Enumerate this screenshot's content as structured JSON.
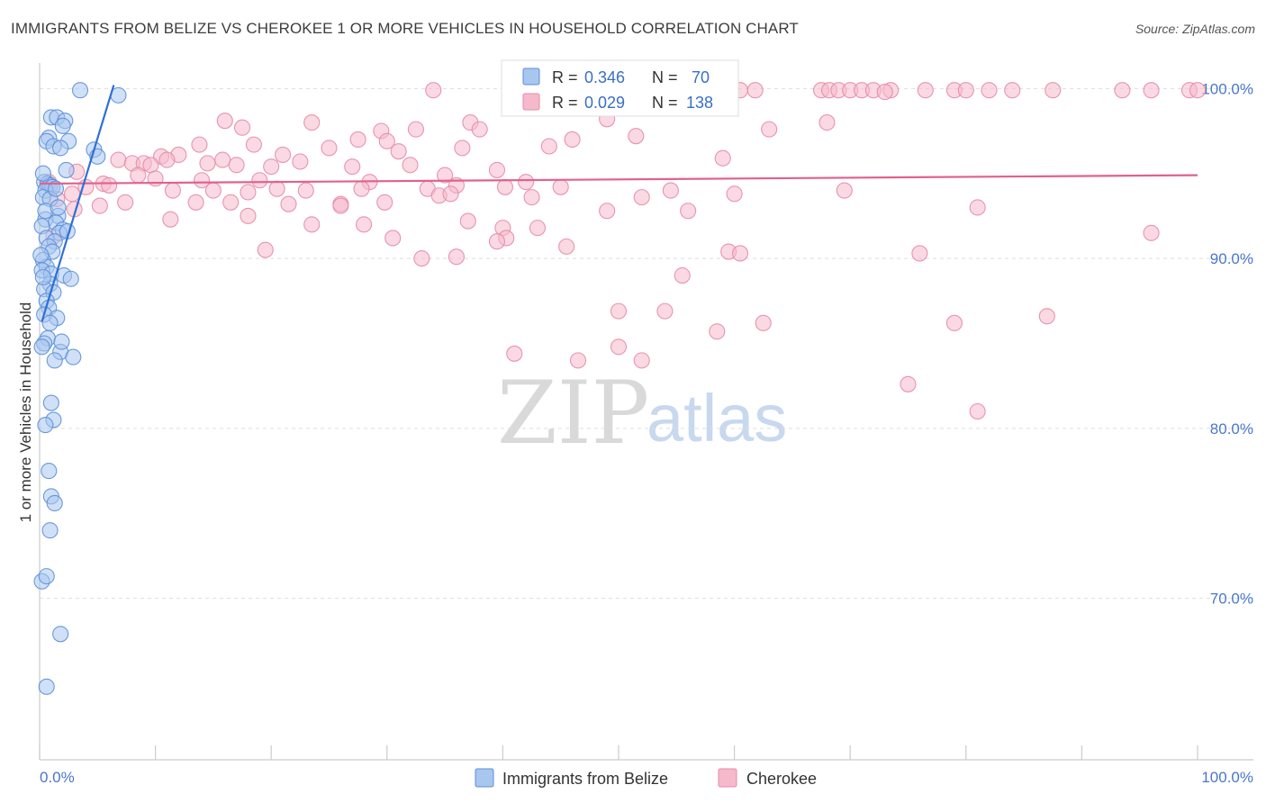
{
  "header": {
    "title": "IMMIGRANTS FROM BELIZE VS CHEROKEE 1 OR MORE VEHICLES IN HOUSEHOLD CORRELATION CHART",
    "source": "Source: ZipAtlas.com"
  },
  "watermark": {
    "zip": "ZIP",
    "atlas": "atlas"
  },
  "colors": {
    "blue_fill": "#a9c6ee",
    "blue_stroke": "#5b8fd9",
    "blue_line": "#2f6fd6",
    "pink_fill": "#f6b9cc",
    "pink_stroke": "#e58aa9",
    "pink_line": "#e0628e",
    "tick_text": "#4a77c9",
    "grid": "#dddddd"
  },
  "legend_box": {
    "rows": [
      {
        "r_label": "R =",
        "r_value": "0.346",
        "n_label": "N =",
        "n_value": "70"
      },
      {
        "r_label": "R =",
        "r_value": "0.029",
        "n_label": "N =",
        "n_value": "138"
      }
    ]
  },
  "chart_data": {
    "type": "scatter",
    "title": "IMMIGRANTS FROM BELIZE VS CHEROKEE 1 OR MORE VEHICLES IN HOUSEHOLD CORRELATION CHART",
    "xlabel": "",
    "ylabel": "1 or more Vehicles in Household",
    "xlim": [
      0,
      100
    ],
    "ylim": [
      60.5,
      101.5
    ],
    "x_tick_labels": [
      {
        "value": 0,
        "label": "0.0%"
      },
      {
        "value": 100,
        "label": "100.0%"
      }
    ],
    "y_tick_labels": [
      {
        "value": 100,
        "label": "100.0%"
      },
      {
        "value": 90,
        "label": "90.0%"
      },
      {
        "value": 80,
        "label": "80.0%"
      },
      {
        "value": 70,
        "label": "70.0%"
      }
    ],
    "y_gridlines": [
      100,
      90,
      80,
      70
    ],
    "legend": [
      "Immigrants from Belize",
      "Cherokee"
    ],
    "series": [
      {
        "name": "Immigrants from Belize",
        "r": 0.346,
        "n": 70,
        "trend": {
          "x": [
            0.2,
            6.4
          ],
          "y": [
            86.3,
            100.2
          ]
        },
        "points": [
          [
            3.5,
            99.9
          ],
          [
            6.8,
            99.6
          ],
          [
            1.0,
            98.3
          ],
          [
            1.5,
            98.3
          ],
          [
            2.2,
            98.1
          ],
          [
            2.0,
            97.8
          ],
          [
            0.8,
            97.1
          ],
          [
            0.6,
            96.9
          ],
          [
            2.5,
            96.9
          ],
          [
            1.2,
            96.6
          ],
          [
            1.8,
            96.5
          ],
          [
            4.7,
            96.4
          ],
          [
            5.0,
            96.0
          ],
          [
            2.3,
            95.2
          ],
          [
            0.4,
            94.5
          ],
          [
            0.7,
            94.4
          ],
          [
            0.9,
            94.3
          ],
          [
            1.1,
            94.2
          ],
          [
            0.5,
            94.0
          ],
          [
            0.3,
            93.6
          ],
          [
            0.9,
            93.5
          ],
          [
            1.6,
            92.5
          ],
          [
            0.5,
            92.3
          ],
          [
            1.4,
            92.1
          ],
          [
            0.2,
            91.9
          ],
          [
            2.0,
            91.7
          ],
          [
            1.7,
            91.5
          ],
          [
            0.6,
            91.2
          ],
          [
            1.3,
            91.0
          ],
          [
            0.8,
            90.7
          ],
          [
            1.1,
            90.4
          ],
          [
            0.3,
            89.9
          ],
          [
            0.6,
            89.5
          ],
          [
            0.2,
            89.3
          ],
          [
            1.0,
            89.1
          ],
          [
            2.1,
            89.0
          ],
          [
            2.7,
            88.8
          ],
          [
            0.9,
            88.5
          ],
          [
            0.4,
            88.2
          ],
          [
            1.2,
            88.0
          ],
          [
            0.6,
            87.5
          ],
          [
            0.8,
            87.1
          ],
          [
            0.4,
            86.7
          ],
          [
            1.5,
            86.5
          ],
          [
            0.9,
            86.2
          ],
          [
            1.8,
            84.5
          ],
          [
            2.9,
            84.2
          ],
          [
            1.3,
            84.0
          ],
          [
            0.7,
            85.3
          ],
          [
            0.4,
            85.0
          ],
          [
            1.0,
            81.5
          ],
          [
            1.2,
            80.5
          ],
          [
            0.5,
            80.2
          ],
          [
            0.8,
            77.5
          ],
          [
            1.0,
            76.0
          ],
          [
            1.3,
            75.6
          ],
          [
            0.9,
            74.0
          ],
          [
            0.2,
            71.0
          ],
          [
            0.6,
            71.3
          ],
          [
            1.8,
            67.9
          ],
          [
            0.6,
            64.8
          ],
          [
            0.3,
            95.0
          ],
          [
            0.5,
            92.8
          ],
          [
            1.6,
            93.0
          ],
          [
            0.1,
            90.2
          ],
          [
            0.3,
            88.9
          ],
          [
            2.4,
            91.6
          ],
          [
            1.9,
            85.1
          ],
          [
            0.2,
            84.8
          ],
          [
            1.4,
            94.1
          ]
        ]
      },
      {
        "name": "Cherokee",
        "r": 0.029,
        "n": 138,
        "trend": {
          "x": [
            0,
            100
          ],
          "y": [
            94.4,
            94.9
          ]
        },
        "points": [
          [
            34.0,
            99.9
          ],
          [
            43.5,
            99.9
          ],
          [
            47.5,
            99.9
          ],
          [
            52.0,
            99.9
          ],
          [
            53.0,
            99.9
          ],
          [
            56.5,
            99.9
          ],
          [
            60.5,
            99.9
          ],
          [
            61.8,
            99.9
          ],
          [
            67.5,
            99.9
          ],
          [
            68.2,
            99.9
          ],
          [
            69.0,
            99.9
          ],
          [
            70.0,
            99.9
          ],
          [
            71.0,
            99.9
          ],
          [
            72.0,
            99.9
          ],
          [
            73.5,
            99.9
          ],
          [
            76.5,
            99.9
          ],
          [
            79.0,
            99.9
          ],
          [
            80.0,
            99.9
          ],
          [
            82.0,
            99.9
          ],
          [
            84.0,
            99.9
          ],
          [
            93.5,
            99.9
          ],
          [
            96.0,
            99.9
          ],
          [
            99.3,
            99.9
          ],
          [
            100.0,
            99.9
          ],
          [
            87.5,
            99.9
          ],
          [
            73.0,
            99.8
          ],
          [
            16.0,
            98.1
          ],
          [
            23.5,
            98.0
          ],
          [
            37.2,
            98.0
          ],
          [
            49.0,
            98.2
          ],
          [
            68.0,
            98.0
          ],
          [
            17.5,
            97.7
          ],
          [
            29.5,
            97.5
          ],
          [
            32.5,
            97.6
          ],
          [
            38.0,
            97.6
          ],
          [
            27.5,
            97.0
          ],
          [
            30.0,
            96.9
          ],
          [
            46.0,
            97.0
          ],
          [
            51.5,
            97.2
          ],
          [
            63.0,
            97.6
          ],
          [
            13.8,
            96.7
          ],
          [
            18.5,
            96.7
          ],
          [
            21.0,
            96.1
          ],
          [
            25.0,
            96.5
          ],
          [
            31.0,
            96.3
          ],
          [
            36.5,
            96.5
          ],
          [
            44.0,
            96.6
          ],
          [
            10.5,
            96.0
          ],
          [
            12.0,
            96.1
          ],
          [
            15.8,
            95.8
          ],
          [
            17.0,
            95.5
          ],
          [
            20.0,
            95.4
          ],
          [
            22.5,
            95.7
          ],
          [
            27.0,
            95.4
          ],
          [
            6.8,
            95.8
          ],
          [
            8.0,
            95.6
          ],
          [
            9.0,
            95.6
          ],
          [
            9.6,
            95.5
          ],
          [
            11.0,
            95.8
          ],
          [
            14.5,
            95.6
          ],
          [
            32.0,
            95.5
          ],
          [
            39.5,
            95.2
          ],
          [
            59.0,
            95.9
          ],
          [
            3.2,
            95.1
          ],
          [
            8.5,
            94.9
          ],
          [
            10.0,
            94.7
          ],
          [
            14.0,
            94.6
          ],
          [
            28.5,
            94.5
          ],
          [
            35.0,
            94.9
          ],
          [
            42.0,
            94.5
          ],
          [
            4.0,
            94.2
          ],
          [
            5.5,
            94.4
          ],
          [
            6.0,
            94.3
          ],
          [
            11.5,
            94.0
          ],
          [
            15.0,
            94.0
          ],
          [
            18.0,
            93.9
          ],
          [
            20.5,
            94.1
          ],
          [
            23.0,
            94.0
          ],
          [
            27.8,
            94.1
          ],
          [
            33.5,
            94.1
          ],
          [
            36.0,
            94.3
          ],
          [
            40.2,
            94.2
          ],
          [
            45.0,
            94.2
          ],
          [
            54.5,
            94.0
          ],
          [
            60.0,
            93.8
          ],
          [
            69.5,
            94.0
          ],
          [
            2.8,
            93.8
          ],
          [
            1.5,
            93.5
          ],
          [
            5.2,
            93.1
          ],
          [
            7.4,
            93.3
          ],
          [
            13.5,
            93.3
          ],
          [
            16.5,
            93.3
          ],
          [
            21.5,
            93.2
          ],
          [
            26.0,
            93.2
          ],
          [
            29.8,
            93.3
          ],
          [
            34.5,
            93.7
          ],
          [
            42.5,
            93.6
          ],
          [
            52.0,
            93.6
          ],
          [
            3.0,
            92.9
          ],
          [
            18.0,
            92.5
          ],
          [
            28.0,
            92.0
          ],
          [
            23.5,
            92.0
          ],
          [
            37.0,
            92.2
          ],
          [
            40.0,
            91.8
          ],
          [
            43.0,
            91.8
          ],
          [
            56.0,
            92.8
          ],
          [
            81.0,
            93.0
          ],
          [
            11.3,
            92.3
          ],
          [
            30.5,
            91.2
          ],
          [
            40.3,
            91.2
          ],
          [
            39.5,
            91.0
          ],
          [
            49.0,
            92.8
          ],
          [
            19.5,
            90.5
          ],
          [
            33.0,
            90.0
          ],
          [
            36.0,
            90.1
          ],
          [
            45.5,
            90.7
          ],
          [
            59.5,
            90.4
          ],
          [
            60.5,
            90.3
          ],
          [
            76.0,
            90.3
          ],
          [
            96.0,
            91.5
          ],
          [
            55.5,
            89.0
          ],
          [
            50.0,
            86.9
          ],
          [
            54.0,
            86.9
          ],
          [
            58.5,
            85.7
          ],
          [
            62.5,
            86.2
          ],
          [
            79.0,
            86.2
          ],
          [
            87.0,
            86.6
          ],
          [
            41.0,
            84.4
          ],
          [
            46.5,
            84.0
          ],
          [
            50.0,
            84.8
          ],
          [
            52.0,
            84.0
          ],
          [
            75.0,
            82.6
          ],
          [
            81.0,
            81.0
          ],
          [
            26.0,
            93.1
          ],
          [
            19.0,
            94.6
          ],
          [
            35.5,
            93.8
          ],
          [
            0.8,
            94.5
          ],
          [
            1.2,
            91.3
          ]
        ]
      }
    ]
  },
  "x_legend": {
    "items": [
      {
        "label": "Immigrants from Belize"
      },
      {
        "label": "Cherokee"
      }
    ]
  }
}
